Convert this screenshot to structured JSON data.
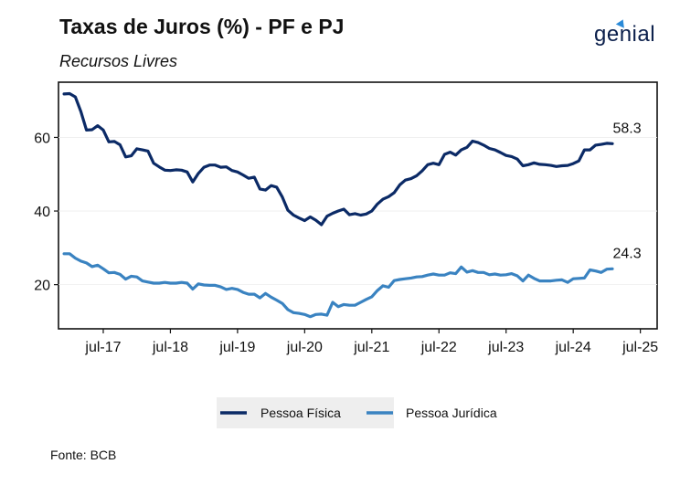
{
  "title": "Taxas de Juros (%) - PF e PJ",
  "subtitle": "Recursos Livres",
  "logo_text": "genial",
  "source": "Fonte: BCB",
  "colors": {
    "pf": "#0b2a66",
    "pj": "#3a83c1",
    "grid": "#ededed",
    "legend_bg": "#eeeeee"
  },
  "chart_data": {
    "type": "line",
    "title": "Taxas de Juros (%) - PF e PJ",
    "subtitle": "Recursos Livres",
    "xlabel": "",
    "ylabel": "",
    "ylim": [
      8,
      75
    ],
    "xlim": [
      "2016-11",
      "2025-10"
    ],
    "y_ticks": [
      20,
      40,
      60
    ],
    "x_ticks": [
      {
        "date": "2017-07",
        "label": "jul-17"
      },
      {
        "date": "2018-07",
        "label": "jul-18"
      },
      {
        "date": "2019-07",
        "label": "jul-19"
      },
      {
        "date": "2020-07",
        "label": "jul-20"
      },
      {
        "date": "2021-07",
        "label": "jul-21"
      },
      {
        "date": "2022-07",
        "label": "jul-22"
      },
      {
        "date": "2023-07",
        "label": "jul-23"
      },
      {
        "date": "2024-07",
        "label": "jul-24"
      },
      {
        "date": "2025-07",
        "label": "jul-25"
      }
    ],
    "grid": true,
    "legend_position": "bottom",
    "series": [
      {
        "name": "Pessoa Física",
        "points": [
          [
            "2016-12",
            71.8
          ],
          [
            "2017-01",
            71.9
          ],
          [
            "2017-02",
            71.0
          ],
          [
            "2017-03",
            67.0
          ],
          [
            "2017-04",
            62.0
          ],
          [
            "2017-05",
            62.1
          ],
          [
            "2017-06",
            63.2
          ],
          [
            "2017-07",
            62.0
          ],
          [
            "2017-08",
            58.8
          ],
          [
            "2017-09",
            58.9
          ],
          [
            "2017-10",
            58.0
          ],
          [
            "2017-11",
            54.7
          ],
          [
            "2017-12",
            55.0
          ],
          [
            "2018-01",
            56.9
          ],
          [
            "2018-02",
            56.6
          ],
          [
            "2018-03",
            56.3
          ],
          [
            "2018-04",
            53.0
          ],
          [
            "2018-05",
            52.0
          ],
          [
            "2018-06",
            51.1
          ],
          [
            "2018-07",
            51.0
          ],
          [
            "2018-08",
            51.2
          ],
          [
            "2018-09",
            51.1
          ],
          [
            "2018-10",
            50.6
          ],
          [
            "2018-11",
            47.9
          ],
          [
            "2018-12",
            50.2
          ],
          [
            "2019-01",
            51.9
          ],
          [
            "2019-02",
            52.5
          ],
          [
            "2019-03",
            52.5
          ],
          [
            "2019-04",
            51.9
          ],
          [
            "2019-05",
            52.0
          ],
          [
            "2019-06",
            51.0
          ],
          [
            "2019-07",
            50.6
          ],
          [
            "2019-08",
            49.8
          ],
          [
            "2019-09",
            48.9
          ],
          [
            "2019-10",
            49.2
          ],
          [
            "2019-11",
            46.0
          ],
          [
            "2019-12",
            45.7
          ],
          [
            "2020-01",
            46.9
          ],
          [
            "2020-02",
            46.5
          ],
          [
            "2020-03",
            43.8
          ],
          [
            "2020-04",
            40.2
          ],
          [
            "2020-05",
            38.9
          ],
          [
            "2020-06",
            38.1
          ],
          [
            "2020-07",
            37.4
          ],
          [
            "2020-08",
            38.4
          ],
          [
            "2020-09",
            37.5
          ],
          [
            "2020-10",
            36.3
          ],
          [
            "2020-11",
            38.6
          ],
          [
            "2020-12",
            39.4
          ],
          [
            "2021-01",
            40.0
          ],
          [
            "2021-02",
            40.5
          ],
          [
            "2021-03",
            39.0
          ],
          [
            "2021-04",
            39.3
          ],
          [
            "2021-05",
            38.9
          ],
          [
            "2021-06",
            39.2
          ],
          [
            "2021-07",
            40.0
          ],
          [
            "2021-08",
            41.9
          ],
          [
            "2021-09",
            43.2
          ],
          [
            "2021-10",
            43.9
          ],
          [
            "2021-11",
            45.0
          ],
          [
            "2021-12",
            47.1
          ],
          [
            "2022-01",
            48.4
          ],
          [
            "2022-02",
            48.8
          ],
          [
            "2022-03",
            49.6
          ],
          [
            "2022-04",
            50.9
          ],
          [
            "2022-05",
            52.6
          ],
          [
            "2022-06",
            53.0
          ],
          [
            "2022-07",
            52.6
          ],
          [
            "2022-08",
            55.4
          ],
          [
            "2022-09",
            56.0
          ],
          [
            "2022-10",
            55.2
          ],
          [
            "2022-11",
            56.6
          ],
          [
            "2022-12",
            57.3
          ],
          [
            "2023-01",
            59.0
          ],
          [
            "2023-02",
            58.6
          ],
          [
            "2023-03",
            57.9
          ],
          [
            "2023-04",
            57.0
          ],
          [
            "2023-05",
            56.6
          ],
          [
            "2023-06",
            55.9
          ],
          [
            "2023-07",
            55.1
          ],
          [
            "2023-08",
            54.8
          ],
          [
            "2023-09",
            54.1
          ],
          [
            "2023-10",
            52.3
          ],
          [
            "2023-11",
            52.6
          ],
          [
            "2023-12",
            53.1
          ],
          [
            "2024-01",
            52.7
          ],
          [
            "2024-02",
            52.6
          ],
          [
            "2024-03",
            52.4
          ],
          [
            "2024-04",
            52.1
          ],
          [
            "2024-05",
            52.3
          ],
          [
            "2024-06",
            52.4
          ],
          [
            "2024-07",
            52.9
          ],
          [
            "2024-08",
            53.6
          ],
          [
            "2024-09",
            56.6
          ],
          [
            "2024-10",
            56.6
          ],
          [
            "2024-11",
            57.9
          ],
          [
            "2024-12",
            58.1
          ],
          [
            "2025-01",
            58.4
          ],
          [
            "2025-02",
            58.3
          ]
        ]
      },
      {
        "name": "Pessoa Jurídica",
        "points": [
          [
            "2016-12",
            28.4
          ],
          [
            "2017-01",
            28.4
          ],
          [
            "2017-02",
            27.2
          ],
          [
            "2017-03",
            26.4
          ],
          [
            "2017-04",
            25.9
          ],
          [
            "2017-05",
            24.9
          ],
          [
            "2017-06",
            25.3
          ],
          [
            "2017-07",
            24.3
          ],
          [
            "2017-08",
            23.2
          ],
          [
            "2017-09",
            23.3
          ],
          [
            "2017-10",
            22.8
          ],
          [
            "2017-11",
            21.5
          ],
          [
            "2017-12",
            22.3
          ],
          [
            "2018-01",
            22.1
          ],
          [
            "2018-02",
            21.0
          ],
          [
            "2018-03",
            20.7
          ],
          [
            "2018-04",
            20.4
          ],
          [
            "2018-05",
            20.4
          ],
          [
            "2018-06",
            20.6
          ],
          [
            "2018-07",
            20.4
          ],
          [
            "2018-08",
            20.4
          ],
          [
            "2018-09",
            20.6
          ],
          [
            "2018-10",
            20.4
          ],
          [
            "2018-11",
            18.8
          ],
          [
            "2018-12",
            20.2
          ],
          [
            "2019-01",
            19.9
          ],
          [
            "2019-02",
            19.8
          ],
          [
            "2019-03",
            19.8
          ],
          [
            "2019-04",
            19.4
          ],
          [
            "2019-05",
            18.7
          ],
          [
            "2019-06",
            19.0
          ],
          [
            "2019-07",
            18.7
          ],
          [
            "2019-08",
            17.9
          ],
          [
            "2019-09",
            17.4
          ],
          [
            "2019-10",
            17.4
          ],
          [
            "2019-11",
            16.4
          ],
          [
            "2019-12",
            17.6
          ],
          [
            "2020-01",
            16.6
          ],
          [
            "2020-02",
            15.8
          ],
          [
            "2020-03",
            14.9
          ],
          [
            "2020-04",
            13.2
          ],
          [
            "2020-05",
            12.4
          ],
          [
            "2020-06",
            12.2
          ],
          [
            "2020-07",
            11.9
          ],
          [
            "2020-08",
            11.3
          ],
          [
            "2020-09",
            11.9
          ],
          [
            "2020-10",
            12.0
          ],
          [
            "2020-11",
            11.7
          ],
          [
            "2020-12",
            15.2
          ],
          [
            "2021-01",
            14.0
          ],
          [
            "2021-02",
            14.6
          ],
          [
            "2021-03",
            14.4
          ],
          [
            "2021-04",
            14.4
          ],
          [
            "2021-05",
            15.2
          ],
          [
            "2021-06",
            16.0
          ],
          [
            "2021-07",
            16.7
          ],
          [
            "2021-08",
            18.4
          ],
          [
            "2021-09",
            19.7
          ],
          [
            "2021-10",
            19.3
          ],
          [
            "2021-11",
            21.1
          ],
          [
            "2021-12",
            21.4
          ],
          [
            "2022-01",
            21.6
          ],
          [
            "2022-02",
            21.8
          ],
          [
            "2022-03",
            22.1
          ],
          [
            "2022-04",
            22.2
          ],
          [
            "2022-05",
            22.6
          ],
          [
            "2022-06",
            22.9
          ],
          [
            "2022-07",
            22.6
          ],
          [
            "2022-08",
            22.6
          ],
          [
            "2022-09",
            23.2
          ],
          [
            "2022-10",
            23.0
          ],
          [
            "2022-11",
            24.8
          ],
          [
            "2022-12",
            23.4
          ],
          [
            "2023-01",
            23.8
          ],
          [
            "2023-02",
            23.3
          ],
          [
            "2023-03",
            23.3
          ],
          [
            "2023-04",
            22.7
          ],
          [
            "2023-05",
            22.9
          ],
          [
            "2023-06",
            22.6
          ],
          [
            "2023-07",
            22.7
          ],
          [
            "2023-08",
            23.0
          ],
          [
            "2023-09",
            22.4
          ],
          [
            "2023-10",
            21.0
          ],
          [
            "2023-11",
            22.6
          ],
          [
            "2023-12",
            21.7
          ],
          [
            "2024-01",
            21.0
          ],
          [
            "2024-02",
            21.0
          ],
          [
            "2024-03",
            21.0
          ],
          [
            "2024-04",
            21.2
          ],
          [
            "2024-05",
            21.3
          ],
          [
            "2024-06",
            20.6
          ],
          [
            "2024-07",
            21.6
          ],
          [
            "2024-08",
            21.7
          ],
          [
            "2024-09",
            21.8
          ],
          [
            "2024-10",
            24.0
          ],
          [
            "2024-11",
            23.7
          ],
          [
            "2024-12",
            23.3
          ],
          [
            "2025-01",
            24.2
          ],
          [
            "2025-02",
            24.3
          ]
        ]
      }
    ],
    "end_labels": [
      {
        "series": "Pessoa Física",
        "text": "58.3"
      },
      {
        "series": "Pessoa Jurídica",
        "text": "24.3"
      }
    ]
  }
}
